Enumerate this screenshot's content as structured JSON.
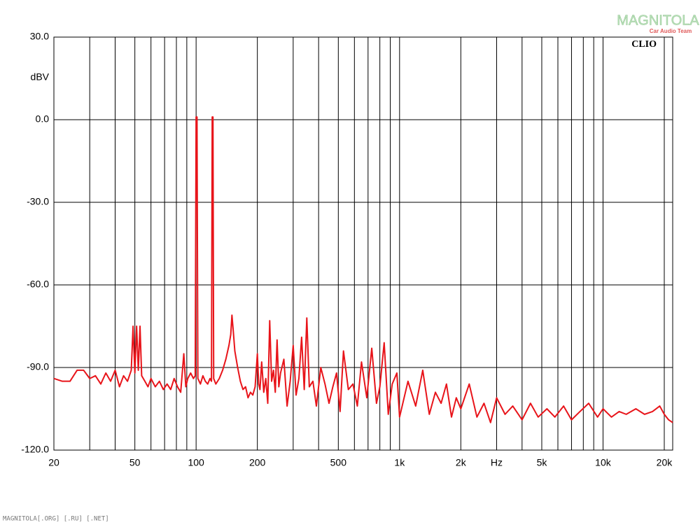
{
  "chart_data": {
    "type": "line",
    "brand": "CLIO",
    "ylabel": "dBV",
    "xscale": "log",
    "grid": true,
    "xlim": [
      20,
      22000
    ],
    "ylim": [
      -120,
      30
    ],
    "xticks": [
      20,
      50,
      100,
      200,
      500,
      {
        "value": 1000,
        "label": "1k"
      },
      {
        "value": 2000,
        "label": "2k"
      },
      {
        "value": 3000,
        "label": "Hz"
      },
      {
        "value": 5000,
        "label": "5k"
      },
      {
        "value": 10000,
        "label": "10k"
      },
      {
        "value": 20000,
        "label": "20k"
      }
    ],
    "xminorticks": [
      30,
      40,
      60,
      70,
      80,
      90,
      300,
      400,
      600,
      700,
      800,
      900,
      4000,
      6000,
      7000,
      8000,
      9000
    ],
    "yticks": [
      {
        "value": -120,
        "label": "-120.0"
      },
      {
        "value": -90,
        "label": "-90.0"
      },
      {
        "value": -60,
        "label": "-60.0"
      },
      {
        "value": -30,
        "label": "-30.0"
      },
      {
        "value": 0,
        "label": "0.0"
      },
      {
        "value": 30,
        "label": "30.0"
      }
    ],
    "color": "#e8141a",
    "x": [
      20,
      22,
      24,
      26,
      28,
      30,
      32,
      34,
      36,
      38,
      40,
      42,
      44,
      46,
      48,
      49,
      50,
      51,
      52,
      53,
      54,
      56,
      58,
      60,
      63,
      66,
      69,
      72,
      75,
      78,
      81,
      84,
      87,
      89,
      91,
      94,
      97,
      99,
      100,
      101,
      102,
      105,
      108,
      111,
      114,
      117,
      119,
      120,
      121,
      122,
      125,
      130,
      135,
      140,
      145,
      148,
      150,
      152,
      155,
      160,
      165,
      170,
      175,
      180,
      185,
      190,
      195,
      200,
      203,
      206,
      210,
      215,
      220,
      225,
      230,
      235,
      240,
      245,
      250,
      255,
      260,
      270,
      280,
      290,
      300,
      310,
      320,
      330,
      340,
      350,
      360,
      375,
      390,
      410,
      430,
      450,
      470,
      490,
      510,
      530,
      560,
      590,
      620,
      650,
      690,
      730,
      770,
      800,
      840,
      880,
      920,
      970,
      1000,
      1100,
      1200,
      1300,
      1400,
      1500,
      1600,
      1700,
      1800,
      1900,
      2000,
      2200,
      2400,
      2600,
      2800,
      3000,
      3300,
      3600,
      4000,
      4400,
      4800,
      5300,
      5800,
      6400,
      7000,
      7700,
      8500,
      9400,
      10000,
      11000,
      12000,
      13000,
      14500,
      16000,
      17500,
      19000,
      20000,
      21000,
      22000
    ],
    "values": [
      -94,
      -95,
      -95,
      -91,
      -91,
      -94,
      -93,
      -96,
      -92,
      -95,
      -91,
      -97,
      -93,
      -95,
      -91,
      -75,
      -92,
      -75,
      -91,
      -75,
      -93,
      -95,
      -97,
      -94,
      -97,
      -95,
      -98,
      -96,
      -98,
      -94,
      -97,
      -99,
      -85,
      -97,
      -94,
      -92,
      -94,
      -93,
      1,
      1,
      -94,
      -96,
      -93,
      -95,
      -96,
      -94,
      -95,
      1,
      1,
      -94,
      -96,
      -94,
      -91,
      -87,
      -82,
      -78,
      -71,
      -76,
      -84,
      -90,
      -95,
      -98,
      -97,
      -101,
      -99,
      -100,
      -97,
      -85,
      -96,
      -98,
      -88,
      -99,
      -94,
      -103,
      -73,
      -95,
      -91,
      -99,
      -80,
      -97,
      -92,
      -87,
      -104,
      -95,
      -82,
      -100,
      -94,
      -79,
      -98,
      -72,
      -97,
      -95,
      -104,
      -90,
      -96,
      -103,
      -97,
      -92,
      -106,
      -84,
      -98,
      -96,
      -104,
      -88,
      -101,
      -83,
      -103,
      -97,
      -81,
      -107,
      -96,
      -92,
      -108,
      -95,
      -104,
      -91,
      -107,
      -99,
      -103,
      -96,
      -108,
      -101,
      -105,
      -96,
      -108,
      -103,
      -110,
      -101,
      -107,
      -104,
      -109,
      -103,
      -108,
      -105,
      -108,
      -104,
      -109,
      -106,
      -103,
      -108,
      -105,
      -108,
      -106,
      -107,
      -105,
      -107,
      -106,
      -104,
      -107,
      -109,
      -110
    ]
  },
  "watermark": {
    "title": "MAGNITOLA",
    "subtitle": "Car Audio Team"
  },
  "footer": "MAGNITOLA[.ORG] [.RU] [.NET]"
}
